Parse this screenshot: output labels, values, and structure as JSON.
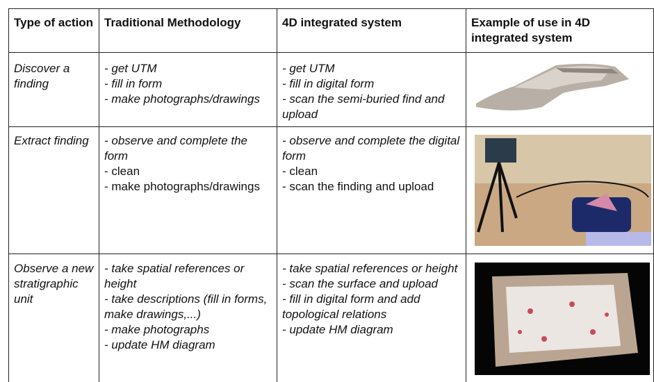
{
  "table": {
    "header": [
      "Type of action",
      "Traditional Methodology",
      "4D integrated system",
      "Example of use in 4D integrated system"
    ],
    "rows": [
      {
        "action": "Discover a finding",
        "traditional": [
          "- get UTM",
          "- fill in form",
          "- make photographs/drawings"
        ],
        "integrated": [
          "- get UTM",
          "- fill in digital form",
          "- scan the semi-buried find and upload"
        ]
      },
      {
        "action": "Extract finding",
        "traditional": [
          "- observe and complete the form",
          "- clean",
          "- make photographs/drawings"
        ],
        "integrated": [
          "- observe and complete the digital form",
          "- clean",
          "- scan the finding and upload"
        ]
      },
      {
        "action": "Observe a new stratigraphic unit",
        "traditional": [
          "- take spatial references or height",
          "- take descriptions (fill in forms, make drawings,...)",
          "- make photographs",
          "- update HM diagram"
        ],
        "integrated": [
          "- take spatial references or height",
          "- scan the surface and upload",
          "- fill in digital form and add topological relations",
          "- update HM diagram"
        ]
      }
    ]
  }
}
